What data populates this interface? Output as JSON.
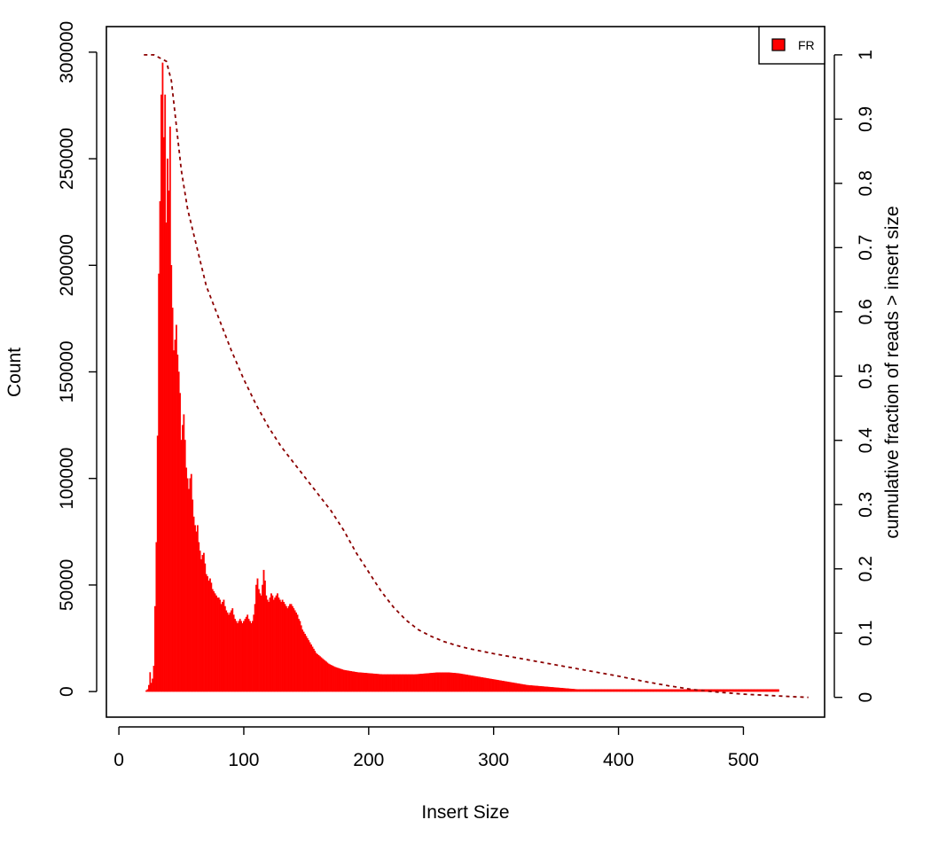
{
  "chart_data": {
    "type": "bar",
    "title": "",
    "xlabel": "Insert Size",
    "ylabel": "Count",
    "y2label": "cumulative fraction of reads > insert size",
    "xlim": [
      -10,
      565
    ],
    "ylim": [
      -12000,
      312000
    ],
    "y2lim": [
      -0.0308,
      1.044
    ],
    "xticks": [
      0,
      100,
      200,
      300,
      400,
      500
    ],
    "yticks": [
      0,
      50000,
      100000,
      150000,
      200000,
      250000,
      300000
    ],
    "y2ticks": [
      0,
      0.1,
      0.2,
      0.3,
      0.4,
      0.5,
      0.6,
      0.7,
      0.8,
      0.9,
      1
    ],
    "y2tick_labels": [
      "0",
      "0.1",
      "0.2",
      "0.3",
      "0.4",
      "0.5",
      "0.6",
      "0.7",
      "0.8",
      "0.9",
      "1"
    ],
    "grid": false,
    "legend": {
      "position": "top-right",
      "entries": [
        "FR"
      ]
    },
    "colors": {
      "bars": "#ff0000",
      "legend_fill": "#ff0000",
      "cumulative_line": "#8b0000"
    },
    "series": [
      {
        "name": "FR",
        "type": "histogram",
        "x_start": 20,
        "x_step": 1,
        "values": [
          0,
          0,
          500,
          1000,
          3000,
          9000,
          4000,
          6000,
          12000,
          40000,
          70000,
          120000,
          196000,
          230000,
          280000,
          295000,
          260000,
          280000,
          220000,
          250000,
          235000,
          265000,
          200000,
          180000,
          160000,
          165000,
          172000,
          158000,
          150000,
          140000,
          118000,
          125000,
          130000,
          118000,
          105000,
          100000,
          95000,
          100000,
          102000,
          90000,
          82000,
          78000,
          75000,
          78000,
          70000,
          66000,
          62000,
          64000,
          65000,
          60000,
          55000,
          54000,
          52000,
          53000,
          51000,
          48000,
          47000,
          46000,
          45000,
          44000,
          44000,
          43000,
          41000,
          42000,
          43000,
          40000,
          38000,
          37000,
          36000,
          37000,
          38000,
          39000,
          36000,
          34000,
          33000,
          32000,
          33000,
          34000,
          33000,
          32000,
          33000,
          34000,
          35000,
          36000,
          34000,
          33000,
          32000,
          33000,
          36000,
          41000,
          50000,
          53000,
          48000,
          46000,
          45000,
          50000,
          57000,
          52000,
          45000,
          43000,
          42000,
          44000,
          46000,
          45000,
          43000,
          44000,
          45000,
          46000,
          44000,
          43000,
          42000,
          43000,
          42000,
          41000,
          40000,
          39000,
          40000,
          41000,
          41000,
          40000,
          39000,
          38000,
          37000,
          36000,
          34000,
          33000,
          31000,
          29000,
          28000,
          27000,
          26000,
          25000,
          24000,
          23000,
          22000,
          21000,
          20000,
          19000,
          18000,
          17500,
          17000,
          16500,
          16000,
          15500,
          15000,
          14500,
          14000,
          13500,
          13000,
          12700,
          12400,
          12100,
          11800,
          11500,
          11300,
          11100,
          10900,
          10700,
          10500,
          10300,
          10100,
          10000,
          9900,
          9800,
          9700,
          9600,
          9500,
          9400,
          9300,
          9200,
          9100,
          9000,
          8950,
          8900,
          8850,
          8800,
          8750,
          8700,
          8650,
          8600,
          8550,
          8500,
          8450,
          8400,
          8350,
          8300,
          8250,
          8200,
          8150,
          8100,
          8050,
          8000,
          8000,
          8000,
          8000,
          8000,
          8000,
          8000,
          8000,
          8000,
          8000,
          8000,
          8000,
          8000,
          8000,
          8000,
          8000,
          8000,
          8000,
          8000,
          8000,
          8000,
          8000,
          8000,
          8000,
          8000,
          8000,
          8000,
          8050,
          8100,
          8150,
          8200,
          8250,
          8300,
          8350,
          8400,
          8450,
          8500,
          8550,
          8600,
          8650,
          8700,
          8750,
          8800,
          8850,
          8900,
          8900,
          8900,
          8900,
          8900,
          8900,
          8900,
          8900,
          8900,
          8900,
          8850,
          8800,
          8750,
          8700,
          8650,
          8600,
          8550,
          8500,
          8400,
          8300,
          8200,
          8100,
          8000,
          7900,
          7800,
          7700,
          7600,
          7500,
          7400,
          7300,
          7200,
          7100,
          7000,
          6900,
          6800,
          6700,
          6600,
          6500,
          6400,
          6300,
          6200,
          6100,
          6000,
          5900,
          5800,
          5700,
          5600,
          5500,
          5400,
          5300,
          5200,
          5100,
          5000,
          4900,
          4800,
          4700,
          4600,
          4500,
          4400,
          4300,
          4200,
          4100,
          4000,
          3900,
          3800,
          3700,
          3600,
          3500,
          3400,
          3300,
          3200,
          3100,
          3000,
          2950,
          2900,
          2850,
          2800,
          2750,
          2700,
          2650,
          2600,
          2550,
          2500,
          2450,
          2400,
          2350,
          2300,
          2250,
          2200,
          2150,
          2100,
          2050,
          2000,
          1950,
          1900,
          1850,
          1800,
          1750,
          1700,
          1650,
          1600,
          1550,
          1500,
          1450,
          1400,
          1350,
          1300,
          1250,
          1200,
          1150,
          1100,
          1050,
          1000,
          1000,
          1000,
          1000,
          1000,
          1000,
          1000,
          1000,
          1000,
          1000,
          1000,
          1000,
          1000,
          1000,
          1000,
          1000,
          1000,
          1000,
          1000,
          1000,
          1000,
          1000,
          1000,
          1000,
          1000,
          1000,
          1000,
          1000,
          1000,
          1000,
          1000,
          1000,
          1000,
          1000,
          1000,
          1000,
          1000,
          1000,
          1000,
          1000,
          1000,
          1000,
          1000,
          1000,
          1000,
          1000,
          1000,
          1000,
          1000,
          1000,
          1000,
          1000,
          1000,
          1000,
          1000,
          1000,
          1000,
          1000,
          1000,
          1000,
          1000,
          1000,
          1000,
          1000,
          1000,
          1000,
          1000,
          1000,
          1000,
          1000,
          1000,
          1000,
          1000,
          1000,
          1000,
          1000,
          1000,
          1000,
          1000,
          1000,
          1000,
          1000,
          1000,
          1000,
          1000,
          1000,
          1000,
          1000,
          1000,
          1000,
          1000,
          1000,
          1000,
          1000,
          1000,
          1000,
          1000,
          1000,
          1000,
          1000,
          1000,
          1000,
          1000,
          1000,
          1000,
          1000,
          1000,
          1000,
          1000,
          1000,
          1000,
          1000,
          1000,
          1000,
          1000,
          1000,
          1000,
          1000,
          1000,
          1000,
          1000,
          1000,
          1000,
          1000,
          1000,
          1000,
          1000,
          1000,
          1000,
          1000,
          1000,
          1000,
          1000,
          1000,
          1000,
          1000,
          1000,
          1000,
          1000,
          1000,
          1000,
          1000,
          1000,
          1000,
          1000,
          1000,
          1000,
          1000,
          1000,
          1000,
          1000,
          1000,
          1000,
          1000,
          1000,
          1000,
          1000,
          1000,
          1000,
          1000,
          1000,
          1000
        ]
      },
      {
        "name": "cumulative fraction of reads > insert size",
        "type": "line",
        "style": "dashed",
        "x": [
          20,
          28,
          38,
          42,
          50,
          55,
          60,
          65,
          70,
          80,
          90,
          100,
          110,
          120,
          130,
          140,
          150,
          160,
          170,
          180,
          190,
          200,
          210,
          220,
          230,
          240,
          250,
          260,
          270,
          280,
          290,
          300,
          320,
          340,
          360,
          380,
          400,
          420,
          440,
          460,
          480,
          500,
          520,
          540,
          552
        ],
        "y": [
          1.0,
          1.0,
          0.99,
          0.96,
          0.82,
          0.76,
          0.72,
          0.68,
          0.64,
          0.59,
          0.54,
          0.495,
          0.455,
          0.42,
          0.39,
          0.365,
          0.34,
          0.315,
          0.29,
          0.26,
          0.225,
          0.195,
          0.165,
          0.14,
          0.12,
          0.105,
          0.095,
          0.087,
          0.081,
          0.076,
          0.072,
          0.068,
          0.061,
          0.054,
          0.047,
          0.04,
          0.033,
          0.025,
          0.018,
          0.012,
          0.008,
          0.005,
          0.003,
          0.001,
          0.0
        ]
      }
    ]
  }
}
